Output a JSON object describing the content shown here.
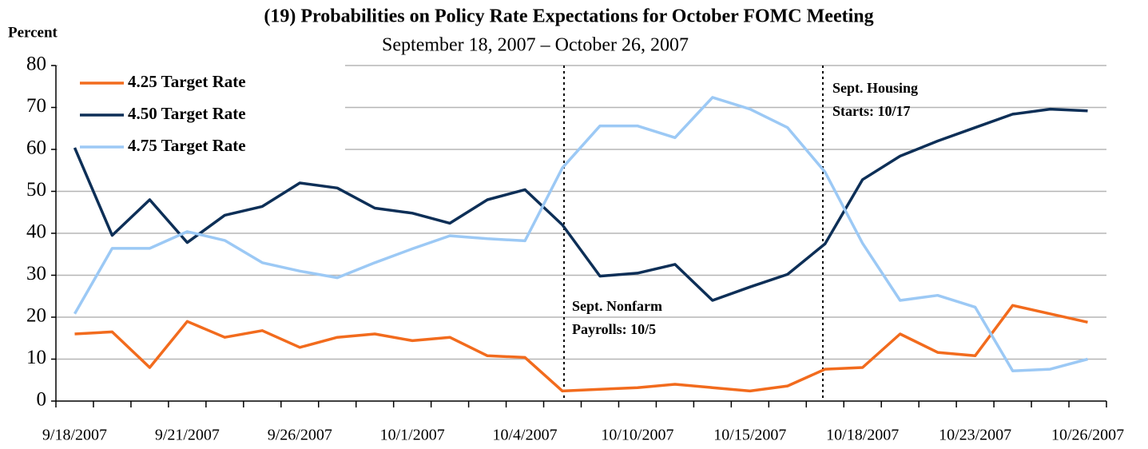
{
  "chart_data": {
    "type": "line",
    "title": "(19) Probabilities on Policy Rate Expectations for October FOMC Meeting",
    "subtitle": "September 18, 2007 – October 26, 2007",
    "y_label": "Percent",
    "categories": [
      "9/18/2007",
      null,
      null,
      "9/21/2007",
      null,
      null,
      "9/26/2007",
      null,
      null,
      "10/1/2007",
      null,
      null,
      "10/4/2007",
      null,
      null,
      "10/10/2007",
      null,
      null,
      "10/15/2007",
      null,
      null,
      "10/18/2007",
      null,
      null,
      "10/23/2007",
      null,
      null,
      "10/26/2007"
    ],
    "series": [
      {
        "name": "4.25 Target Rate",
        "color": "#f26b1d",
        "values": [
          16,
          16.5,
          8,
          19,
          15.2,
          16.8,
          12.8,
          15.2,
          16,
          14.4,
          15.2,
          10.8,
          10.4,
          2.4,
          2.8,
          3.2,
          4,
          3.2,
          2.4,
          3.6,
          7.6,
          8,
          16,
          11.6,
          10.8,
          22.8,
          20.8,
          18.8
        ]
      },
      {
        "name": "4.50 Target Rate",
        "color": "#0d2f57",
        "values": [
          60.4,
          39.5,
          48,
          37.8,
          44.3,
          46.4,
          52,
          50.8,
          46,
          44.8,
          42.4,
          48,
          50.4,
          42,
          29.8,
          30.5,
          32.6,
          24,
          27.2,
          30.2,
          37.5,
          52.8,
          58.4,
          62,
          65.2,
          68.4,
          69.6,
          69.2
        ]
      },
      {
        "name": "4.75 Target Rate",
        "color": "#9cc9f5",
        "values": [
          20.8,
          36.4,
          36.4,
          40.4,
          38.3,
          33,
          31,
          29.4,
          33,
          36.3,
          39.4,
          38.7,
          38.2,
          55.6,
          65.6,
          65.6,
          62.8,
          72.4,
          69.6,
          65.2,
          54.6,
          37.6,
          24,
          25.2,
          22.4,
          7.2,
          7.6,
          10
        ]
      }
    ],
    "annotations": [
      [
        "Sept.  Nonfarm",
        "Payrolls: 10/5"
      ],
      [
        "Sept. Housing",
        "Starts: 10/17"
      ]
    ],
    "ylim": [
      0,
      80
    ],
    "yticks": [
      0,
      10,
      20,
      30,
      40,
      50,
      60,
      70,
      80
    ],
    "grid": true,
    "legend": "top-left"
  }
}
